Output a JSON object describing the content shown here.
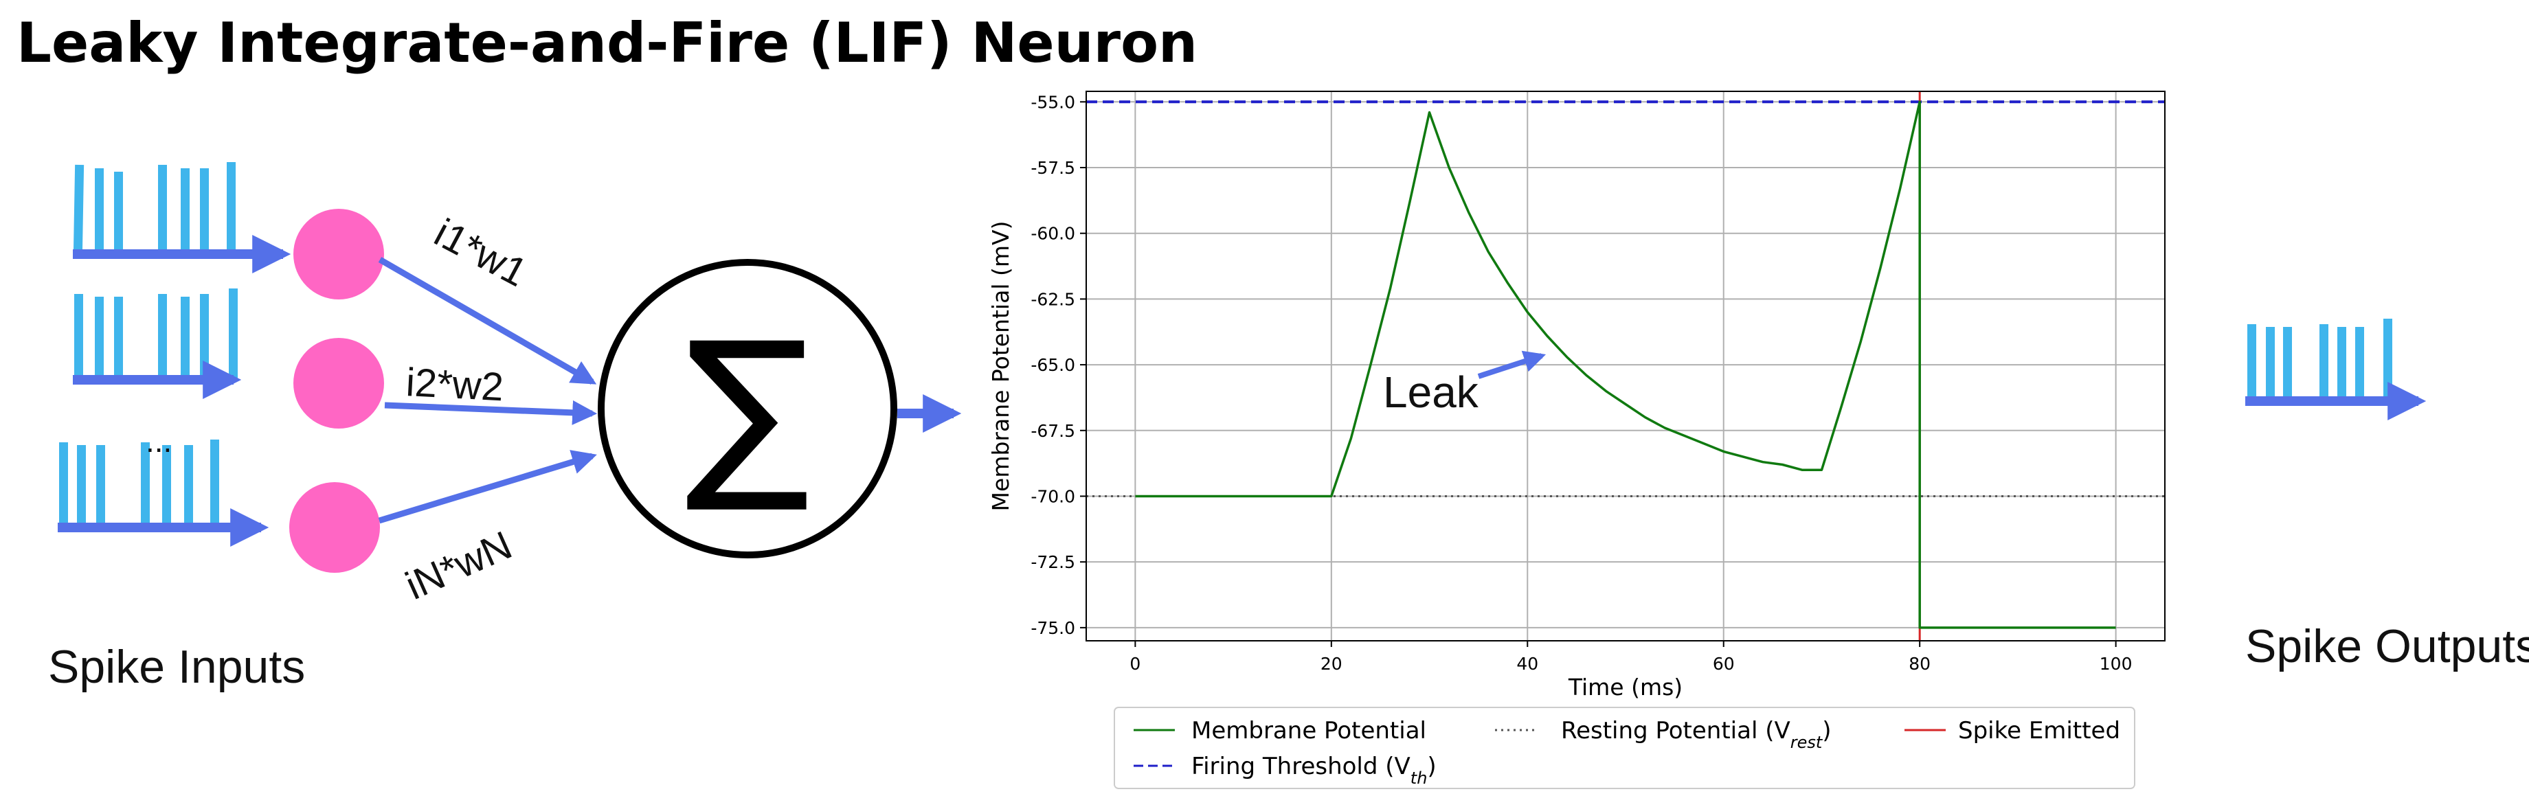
{
  "title": "Leaky Integrate-and-Fire (LIF) Neuron",
  "labels": {
    "spike_inputs": "Spike Inputs",
    "spike_outputs": "Spike Outputs",
    "weights": [
      "i1*w1",
      "i2*w2",
      "iN*wN"
    ],
    "ellipsis": "...",
    "sum_symbol": "∑",
    "leak": "Leak"
  },
  "colors": {
    "spike_blue": "#3fb5ec",
    "arrow_blue": "#5470e8",
    "input_node": "#ff66c4",
    "membrane": "#107a10",
    "threshold": "#1f1fc9",
    "resting": "#555555",
    "spike_emitted": "#d62728"
  },
  "chart_data": {
    "type": "line",
    "xlabel": "Time (ms)",
    "ylabel": "Membrane Potential (mV)",
    "xlim": [
      -5,
      105
    ],
    "ylim": [
      -75.5,
      -54.6
    ],
    "xticks": [
      0,
      20,
      40,
      60,
      80,
      100
    ],
    "xtick_labels": [
      "0",
      "20",
      "40",
      "60",
      "80",
      "100"
    ],
    "yticks": [
      -55.0,
      -57.5,
      -60.0,
      -62.5,
      -65.0,
      -67.5,
      -70.0,
      -72.5,
      -75.0
    ],
    "ytick_labels": [
      "-55.0",
      "-57.5",
      "-60.0",
      "-62.5",
      "-65.0",
      "-67.5",
      "-70.0",
      "-72.5",
      "-75.0"
    ],
    "grid": true,
    "legend_placement": "bottom-center, below plot",
    "series": [
      {
        "name": "Membrane Potential",
        "style": "solid",
        "color": "#107a10",
        "points": [
          [
            0,
            -70.0
          ],
          [
            20,
            -70.0
          ],
          [
            22,
            -67.8
          ],
          [
            24,
            -65.0
          ],
          [
            26,
            -62.1
          ],
          [
            28,
            -58.8
          ],
          [
            30,
            -55.4
          ],
          [
            32,
            -57.5
          ],
          [
            34,
            -59.2
          ],
          [
            36,
            -60.7
          ],
          [
            38,
            -61.9
          ],
          [
            40,
            -63.0
          ],
          [
            42,
            -63.9
          ],
          [
            44,
            -64.7
          ],
          [
            46,
            -65.4
          ],
          [
            48,
            -66.0
          ],
          [
            50,
            -66.5
          ],
          [
            52,
            -67.0
          ],
          [
            54,
            -67.4
          ],
          [
            56,
            -67.7
          ],
          [
            58,
            -68.0
          ],
          [
            60,
            -68.3
          ],
          [
            62,
            -68.5
          ],
          [
            64,
            -68.7
          ],
          [
            66,
            -68.8
          ],
          [
            68,
            -69.0
          ],
          [
            70,
            -69.0
          ],
          [
            72,
            -66.6
          ],
          [
            74,
            -64.1
          ],
          [
            76,
            -61.3
          ],
          [
            78,
            -58.3
          ],
          [
            80,
            -55.0
          ],
          [
            80,
            -75.0
          ],
          [
            100,
            -75.0
          ]
        ]
      },
      {
        "name": "Firing Threshold (V_th)",
        "legend_main": "Firing Threshold (V",
        "legend_sub": "th",
        "style": "dashed",
        "color": "#1f1fc9",
        "y": -55.0
      },
      {
        "name": "Resting Potential (V_rest)",
        "legend_main": "Resting Potential (V",
        "legend_sub": "rest",
        "style": "dotted",
        "color": "#555555",
        "y": -70.0
      },
      {
        "name": "Spike Emitted",
        "style": "solid",
        "color": "#d62728",
        "x": 80
      }
    ]
  }
}
